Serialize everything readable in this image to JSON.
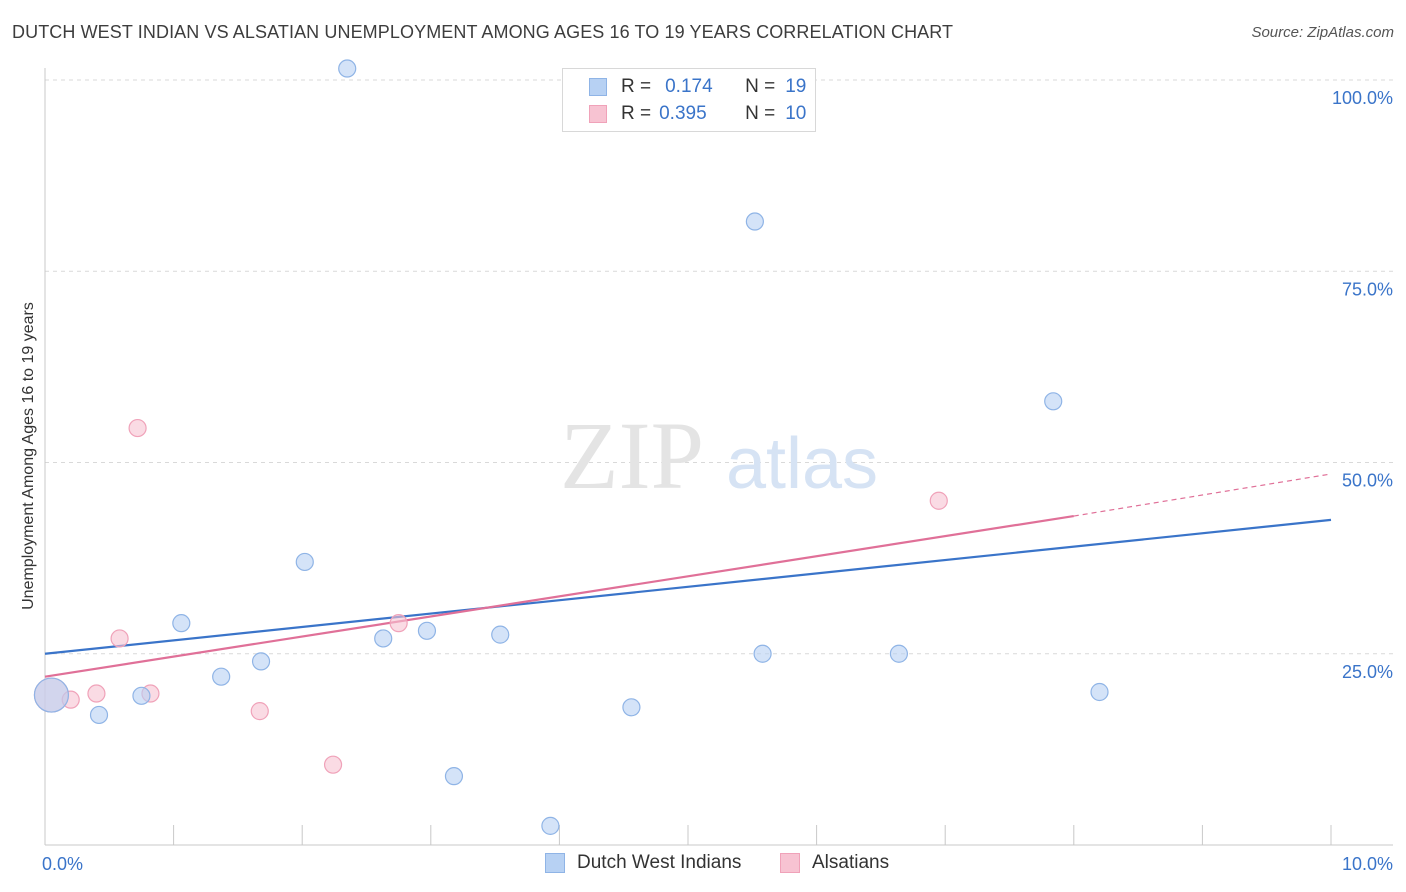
{
  "title": "DUTCH WEST INDIAN VS ALSATIAN UNEMPLOYMENT AMONG AGES 16 TO 19 YEARS CORRELATION CHART",
  "source": "Source: ZipAtlas.com",
  "watermark": {
    "zip": "ZIP",
    "atlas": "atlas"
  },
  "colors": {
    "blue_fill": "#b7d1f3",
    "blue_stroke": "#8fb4e6",
    "blue_line": "#3a74c9",
    "pink_fill": "#f7c3d2",
    "pink_stroke": "#f0a2b9",
    "pink_line": "#e07098",
    "tick_label": "#3a74c9",
    "grid": "#d9d9d9"
  },
  "legend": {
    "rows": [
      {
        "r_label": "R =",
        "r_value": "0.174",
        "n_label": "N =",
        "n_value": "19"
      },
      {
        "r_label": "R =",
        "r_value": "0.395",
        "n_label": "N =",
        "n_value": "10"
      }
    ]
  },
  "chart_data": {
    "type": "scatter",
    "title": "DUTCH WEST INDIAN VS ALSATIAN UNEMPLOYMENT AMONG AGES 16 TO 19 YEARS CORRELATION CHART",
    "xlabel": "",
    "ylabel": "Unemployment Among Ages 16 to 19 years",
    "xlim": [
      0,
      10
    ],
    "ylim": [
      0,
      100
    ],
    "x_tick_labels": [
      {
        "value": 0,
        "label": "0.0%"
      },
      {
        "value": 10,
        "label": "10.0%"
      }
    ],
    "y_tick_labels": [
      {
        "value": 25,
        "label": "25.0%"
      },
      {
        "value": 50,
        "label": "50.0%"
      },
      {
        "value": 75,
        "label": "75.0%"
      },
      {
        "value": 100,
        "label": "100.0%"
      }
    ],
    "grid": true,
    "legend_position": "bottom",
    "series": [
      {
        "name": "Dutch West Indians",
        "color": "#b7d1f3",
        "points": [
          {
            "x": 0.05,
            "y": 19.6,
            "big": true
          },
          {
            "x": 0.42,
            "y": 17.0
          },
          {
            "x": 0.75,
            "y": 19.5
          },
          {
            "x": 1.06,
            "y": 29.0
          },
          {
            "x": 1.37,
            "y": 22.0
          },
          {
            "x": 1.68,
            "y": 24.0
          },
          {
            "x": 2.02,
            "y": 37.0
          },
          {
            "x": 2.35,
            "y": 101.5
          },
          {
            "x": 2.63,
            "y": 27.0
          },
          {
            "x": 2.97,
            "y": 28.0
          },
          {
            "x": 3.18,
            "y": 9.0
          },
          {
            "x": 3.54,
            "y": 27.5
          },
          {
            "x": 3.93,
            "y": 2.5
          },
          {
            "x": 4.56,
            "y": 18.0
          },
          {
            "x": 5.52,
            "y": 81.5
          },
          {
            "x": 5.58,
            "y": 25.0
          },
          {
            "x": 6.64,
            "y": 25.0
          },
          {
            "x": 7.84,
            "y": 58.0
          },
          {
            "x": 8.2,
            "y": 20.0
          }
        ],
        "trend": {
          "x0": 0,
          "y0": 25.0,
          "x1": 10,
          "y1": 42.5
        }
      },
      {
        "name": "Alsatians",
        "color": "#f7c3d2",
        "points": [
          {
            "x": 0.05,
            "y": 19.6,
            "big": true
          },
          {
            "x": 0.2,
            "y": 19.0
          },
          {
            "x": 0.4,
            "y": 19.8
          },
          {
            "x": 0.58,
            "y": 27.0
          },
          {
            "x": 0.72,
            "y": 54.5
          },
          {
            "x": 0.82,
            "y": 19.8
          },
          {
            "x": 1.67,
            "y": 17.5
          },
          {
            "x": 2.24,
            "y": 10.5
          },
          {
            "x": 2.75,
            "y": 29.0
          },
          {
            "x": 6.95,
            "y": 45.0
          }
        ],
        "trend": {
          "x0": 0,
          "y0": 22.0,
          "x1": 8.0,
          "y1": 43.0
        },
        "trend_dashed": {
          "x0": 8.0,
          "y0": 43.0,
          "x1": 10.0,
          "y1": 48.5
        }
      }
    ]
  }
}
